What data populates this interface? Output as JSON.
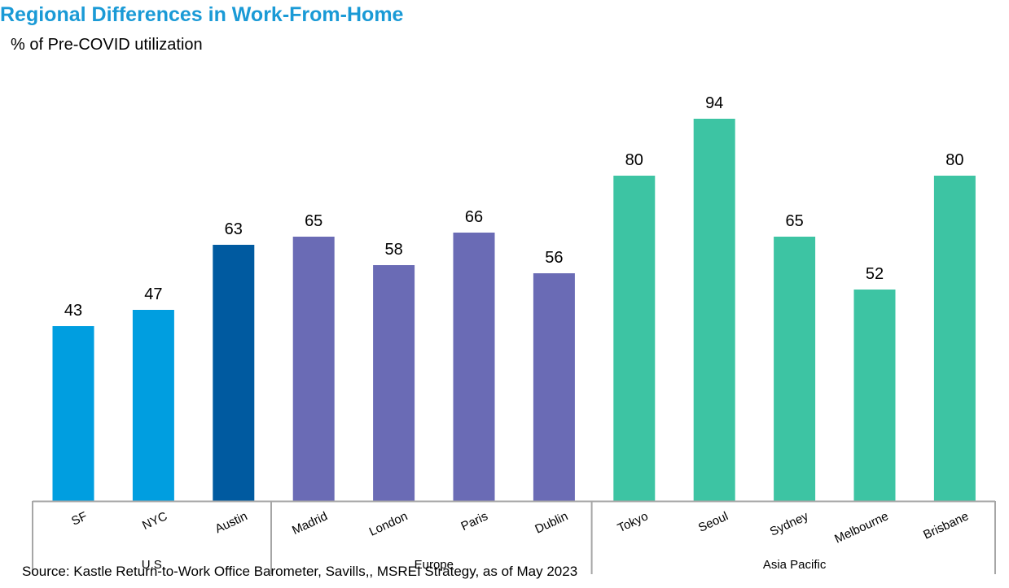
{
  "chart_data": {
    "type": "bar",
    "title": "Regional Differences in Work-From-Home",
    "subtitle": "% of Pre-COVID utilization",
    "source": "Source: Kastle Return-to-Work Office Barometer, Savills,, MSREI Strategy, as of May 2023",
    "categories": [
      "SF",
      "NYC",
      "Austin",
      "Madrid",
      "London",
      "Paris",
      "Dublin",
      "Tokyo",
      "Seoul",
      "Sydney",
      "Melbourne",
      "Brisbane"
    ],
    "values": [
      43,
      47,
      63,
      65,
      58,
      66,
      56,
      80,
      94,
      65,
      52,
      80
    ],
    "groups": [
      {
        "label": "U.S.",
        "categories": [
          "SF",
          "NYC",
          "Austin"
        ]
      },
      {
        "label": "Europe",
        "categories": [
          "Madrid",
          "London",
          "Paris",
          "Dublin"
        ]
      },
      {
        "label": "Asia Pacific",
        "categories": [
          "Tokyo",
          "Seoul",
          "Sydney",
          "Melbourne",
          "Brisbane"
        ]
      }
    ],
    "bar_colors": [
      "#009ee0",
      "#009ee0",
      "#005aa0",
      "#6a6bb5",
      "#6a6bb5",
      "#6a6bb5",
      "#6a6bb5",
      "#3dc4a3",
      "#3dc4a3",
      "#3dc4a3",
      "#3dc4a3",
      "#3dc4a3"
    ],
    "data_labels": true,
    "ylim": [
      0,
      100
    ],
    "grid": false,
    "legend": "none"
  },
  "colors": {
    "title": "#1a9ad6",
    "axis": "#a6a6a6"
  }
}
